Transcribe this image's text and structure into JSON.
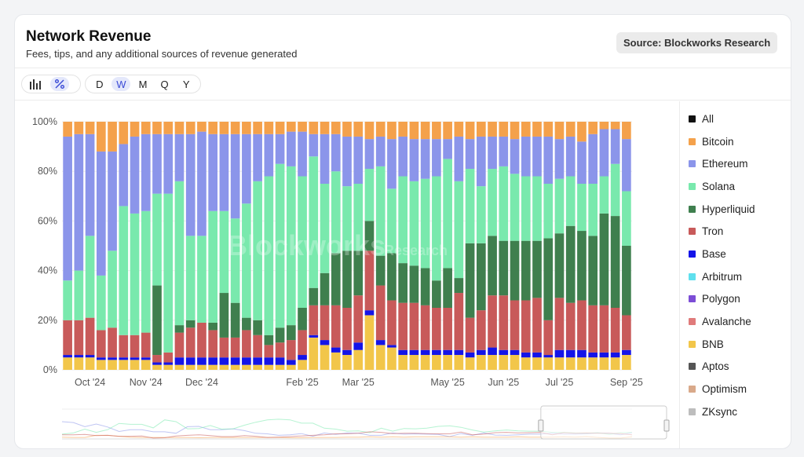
{
  "header": {
    "title": "Network Revenue",
    "subtitle": "Fees, tips, and any additional sources of revenue generated",
    "source": "Source: Blockworks Research"
  },
  "toolbar": {
    "chart_type_icons": [
      "bar-chart-icon",
      "percent-icon"
    ],
    "active_chart_type": "percent",
    "periods": [
      "D",
      "W",
      "M",
      "Q",
      "Y"
    ],
    "active_period": "W"
  },
  "watermark": {
    "main": "Blockworks",
    "sub": "Research"
  },
  "legend": {
    "all_label": "All",
    "items": [
      {
        "label": "Bitcoin",
        "color": "#f4a14b"
      },
      {
        "label": "Ethereum",
        "color": "#8b95ea"
      },
      {
        "label": "Solana",
        "color": "#79e9ad"
      },
      {
        "label": "Hyperliquid",
        "color": "#3f7f4e"
      },
      {
        "label": "Tron",
        "color": "#c85a5a"
      },
      {
        "label": "Base",
        "color": "#1414e8"
      },
      {
        "label": "Arbitrum",
        "color": "#5fe0ee"
      },
      {
        "label": "Polygon",
        "color": "#7c4dd6"
      },
      {
        "label": "Avalanche",
        "color": "#e07b7b"
      },
      {
        "label": "BNB",
        "color": "#f2c64a"
      },
      {
        "label": "Aptos",
        "color": "#555555"
      },
      {
        "label": "Optimism",
        "color": "#d9a98a"
      },
      {
        "label": "ZKsync",
        "color": "#bdbdbd"
      }
    ]
  },
  "chart_data": {
    "type": "bar",
    "stacked": true,
    "normalized": true,
    "ylim": [
      0,
      100
    ],
    "yticks": [
      "0%",
      "20%",
      "40%",
      "60%",
      "80%",
      "100%"
    ],
    "xticks": [
      {
        "label": "Oct '24",
        "index": 2
      },
      {
        "label": "Nov '24",
        "index": 7
      },
      {
        "label": "Dec '24",
        "index": 12
      },
      {
        "label": "Feb '25",
        "index": 21
      },
      {
        "label": "Mar '25",
        "index": 26
      },
      {
        "label": "May '25",
        "index": 34
      },
      {
        "label": "Jun '25",
        "index": 39
      },
      {
        "label": "Jul '25",
        "index": 44
      },
      {
        "label": "Sep '25",
        "index": 50
      }
    ],
    "series_order_bottom_to_top": [
      "BNB",
      "Base",
      "Tron",
      "Hyperliquid",
      "Solana",
      "Ethereum",
      "Bitcoin"
    ],
    "bars": [
      {
        "BNB": 5,
        "Base": 1,
        "Tron": 14,
        "Hyperliquid": 0,
        "Solana": 16,
        "Ethereum": 58,
        "Bitcoin": 6
      },
      {
        "BNB": 5,
        "Base": 1,
        "Tron": 14,
        "Hyperliquid": 0,
        "Solana": 20,
        "Ethereum": 55,
        "Bitcoin": 5
      },
      {
        "BNB": 5,
        "Base": 1,
        "Tron": 15,
        "Hyperliquid": 0,
        "Solana": 33,
        "Ethereum": 41,
        "Bitcoin": 5
      },
      {
        "BNB": 4,
        "Base": 1,
        "Tron": 11,
        "Hyperliquid": 0,
        "Solana": 22,
        "Ethereum": 50,
        "Bitcoin": 12
      },
      {
        "BNB": 4,
        "Base": 1,
        "Tron": 12,
        "Hyperliquid": 0,
        "Solana": 31,
        "Ethereum": 40,
        "Bitcoin": 12
      },
      {
        "BNB": 4,
        "Base": 1,
        "Tron": 9,
        "Hyperliquid": 0,
        "Solana": 52,
        "Ethereum": 25,
        "Bitcoin": 9
      },
      {
        "BNB": 4,
        "Base": 1,
        "Tron": 9,
        "Hyperliquid": 0,
        "Solana": 49,
        "Ethereum": 31,
        "Bitcoin": 6
      },
      {
        "BNB": 4,
        "Base": 1,
        "Tron": 10,
        "Hyperliquid": 0,
        "Solana": 49,
        "Ethereum": 31,
        "Bitcoin": 5
      },
      {
        "BNB": 2,
        "Base": 1,
        "Tron": 3,
        "Hyperliquid": 28,
        "Solana": 37,
        "Ethereum": 24,
        "Bitcoin": 5
      },
      {
        "BNB": 2,
        "Base": 1,
        "Tron": 4,
        "Hyperliquid": 0,
        "Solana": 64,
        "Ethereum": 24,
        "Bitcoin": 5
      },
      {
        "BNB": 2,
        "Base": 3,
        "Tron": 10,
        "Hyperliquid": 3,
        "Solana": 58,
        "Ethereum": 19,
        "Bitcoin": 5
      },
      {
        "BNB": 2,
        "Base": 3,
        "Tron": 12,
        "Hyperliquid": 3,
        "Solana": 34,
        "Ethereum": 41,
        "Bitcoin": 5
      },
      {
        "BNB": 2,
        "Base": 3,
        "Tron": 14,
        "Hyperliquid": 0,
        "Solana": 35,
        "Ethereum": 42,
        "Bitcoin": 4
      },
      {
        "BNB": 2,
        "Base": 3,
        "Tron": 11,
        "Hyperliquid": 3,
        "Solana": 45,
        "Ethereum": 31,
        "Bitcoin": 5
      },
      {
        "BNB": 2,
        "Base": 3,
        "Tron": 8,
        "Hyperliquid": 18,
        "Solana": 33,
        "Ethereum": 31,
        "Bitcoin": 5
      },
      {
        "BNB": 2,
        "Base": 3,
        "Tron": 8,
        "Hyperliquid": 14,
        "Solana": 34,
        "Ethereum": 34,
        "Bitcoin": 5
      },
      {
        "BNB": 2,
        "Base": 3,
        "Tron": 11,
        "Hyperliquid": 5,
        "Solana": 46,
        "Ethereum": 28,
        "Bitcoin": 5
      },
      {
        "BNB": 2,
        "Base": 3,
        "Tron": 9,
        "Hyperliquid": 6,
        "Solana": 56,
        "Ethereum": 19,
        "Bitcoin": 5
      },
      {
        "BNB": 2,
        "Base": 3,
        "Tron": 5,
        "Hyperliquid": 4,
        "Solana": 64,
        "Ethereum": 17,
        "Bitcoin": 5
      },
      {
        "BNB": 2,
        "Base": 3,
        "Tron": 6,
        "Hyperliquid": 6,
        "Solana": 66,
        "Ethereum": 12,
        "Bitcoin": 5
      },
      {
        "BNB": 2,
        "Base": 2,
        "Tron": 8,
        "Hyperliquid": 6,
        "Solana": 64,
        "Ethereum": 14,
        "Bitcoin": 4
      },
      {
        "BNB": 4,
        "Base": 2,
        "Tron": 10,
        "Hyperliquid": 9,
        "Solana": 53,
        "Ethereum": 18,
        "Bitcoin": 4
      },
      {
        "BNB": 13,
        "Base": 1,
        "Tron": 12,
        "Hyperliquid": 7,
        "Solana": 53,
        "Ethereum": 9,
        "Bitcoin": 5
      },
      {
        "BNB": 10,
        "Base": 2,
        "Tron": 14,
        "Hyperliquid": 13,
        "Solana": 36,
        "Ethereum": 20,
        "Bitcoin": 5
      },
      {
        "BNB": 7,
        "Base": 2,
        "Tron": 17,
        "Hyperliquid": 21,
        "Solana": 33,
        "Ethereum": 15,
        "Bitcoin": 5
      },
      {
        "BNB": 6,
        "Base": 2,
        "Tron": 17,
        "Hyperliquid": 23,
        "Solana": 26,
        "Ethereum": 20,
        "Bitcoin": 6
      },
      {
        "BNB": 8,
        "Base": 3,
        "Tron": 19,
        "Hyperliquid": 18,
        "Solana": 27,
        "Ethereum": 19,
        "Bitcoin": 6
      },
      {
        "BNB": 22,
        "Base": 2,
        "Tron": 24,
        "Hyperliquid": 12,
        "Solana": 21,
        "Ethereum": 12,
        "Bitcoin": 7
      },
      {
        "BNB": 10,
        "Base": 2,
        "Tron": 22,
        "Hyperliquid": 12,
        "Solana": 36,
        "Ethereum": 12,
        "Bitcoin": 6
      },
      {
        "BNB": 9,
        "Base": 1,
        "Tron": 18,
        "Hyperliquid": 19,
        "Solana": 26,
        "Ethereum": 20,
        "Bitcoin": 7
      },
      {
        "BNB": 6,
        "Base": 2,
        "Tron": 19,
        "Hyperliquid": 16,
        "Solana": 35,
        "Ethereum": 16,
        "Bitcoin": 6
      },
      {
        "BNB": 6,
        "Base": 2,
        "Tron": 19,
        "Hyperliquid": 15,
        "Solana": 34,
        "Ethereum": 17,
        "Bitcoin": 7
      },
      {
        "BNB": 6,
        "Base": 2,
        "Tron": 18,
        "Hyperliquid": 15,
        "Solana": 36,
        "Ethereum": 16,
        "Bitcoin": 7
      },
      {
        "BNB": 6,
        "Base": 2,
        "Tron": 17,
        "Hyperliquid": 11,
        "Solana": 42,
        "Ethereum": 15,
        "Bitcoin": 7
      },
      {
        "BNB": 6,
        "Base": 2,
        "Tron": 17,
        "Hyperliquid": 16,
        "Solana": 44,
        "Ethereum": 8,
        "Bitcoin": 7
      },
      {
        "BNB": 6,
        "Base": 2,
        "Tron": 23,
        "Hyperliquid": 6,
        "Solana": 39,
        "Ethereum": 18,
        "Bitcoin": 6
      },
      {
        "BNB": 5,
        "Base": 2,
        "Tron": 14,
        "Hyperliquid": 30,
        "Solana": 30,
        "Ethereum": 12,
        "Bitcoin": 7
      },
      {
        "BNB": 6,
        "Base": 2,
        "Tron": 16,
        "Hyperliquid": 27,
        "Solana": 23,
        "Ethereum": 20,
        "Bitcoin": 6
      },
      {
        "BNB": 6,
        "Base": 3,
        "Tron": 21,
        "Hyperliquid": 24,
        "Solana": 27,
        "Ethereum": 13,
        "Bitcoin": 6
      },
      {
        "BNB": 6,
        "Base": 2,
        "Tron": 22,
        "Hyperliquid": 22,
        "Solana": 30,
        "Ethereum": 12,
        "Bitcoin": 6
      },
      {
        "BNB": 6,
        "Base": 2,
        "Tron": 20,
        "Hyperliquid": 24,
        "Solana": 27,
        "Ethereum": 14,
        "Bitcoin": 7
      },
      {
        "BNB": 5,
        "Base": 2,
        "Tron": 21,
        "Hyperliquid": 24,
        "Solana": 26,
        "Ethereum": 16,
        "Bitcoin": 6
      },
      {
        "BNB": 5,
        "Base": 2,
        "Tron": 22,
        "Hyperliquid": 23,
        "Solana": 26,
        "Ethereum": 16,
        "Bitcoin": 6
      },
      {
        "BNB": 5,
        "Base": 1,
        "Tron": 14,
        "Hyperliquid": 33,
        "Solana": 22,
        "Ethereum": 19,
        "Bitcoin": 6
      },
      {
        "BNB": 5,
        "Base": 3,
        "Tron": 21,
        "Hyperliquid": 26,
        "Solana": 22,
        "Ethereum": 16,
        "Bitcoin": 7
      },
      {
        "BNB": 5,
        "Base": 3,
        "Tron": 19,
        "Hyperliquid": 31,
        "Solana": 20,
        "Ethereum": 16,
        "Bitcoin": 6
      },
      {
        "BNB": 5,
        "Base": 3,
        "Tron": 20,
        "Hyperliquid": 28,
        "Solana": 19,
        "Ethereum": 17,
        "Bitcoin": 8
      },
      {
        "BNB": 5,
        "Base": 2,
        "Tron": 19,
        "Hyperliquid": 28,
        "Solana": 21,
        "Ethereum": 20,
        "Bitcoin": 5
      },
      {
        "BNB": 5,
        "Base": 2,
        "Tron": 19,
        "Hyperliquid": 37,
        "Solana": 15,
        "Ethereum": 19,
        "Bitcoin": 3
      },
      {
        "BNB": 5,
        "Base": 2,
        "Tron": 18,
        "Hyperliquid": 37,
        "Solana": 21,
        "Ethereum": 14,
        "Bitcoin": 3
      },
      {
        "BNB": 6,
        "Base": 2,
        "Tron": 14,
        "Hyperliquid": 28,
        "Solana": 22,
        "Ethereum": 21,
        "Bitcoin": 7
      }
    ]
  }
}
